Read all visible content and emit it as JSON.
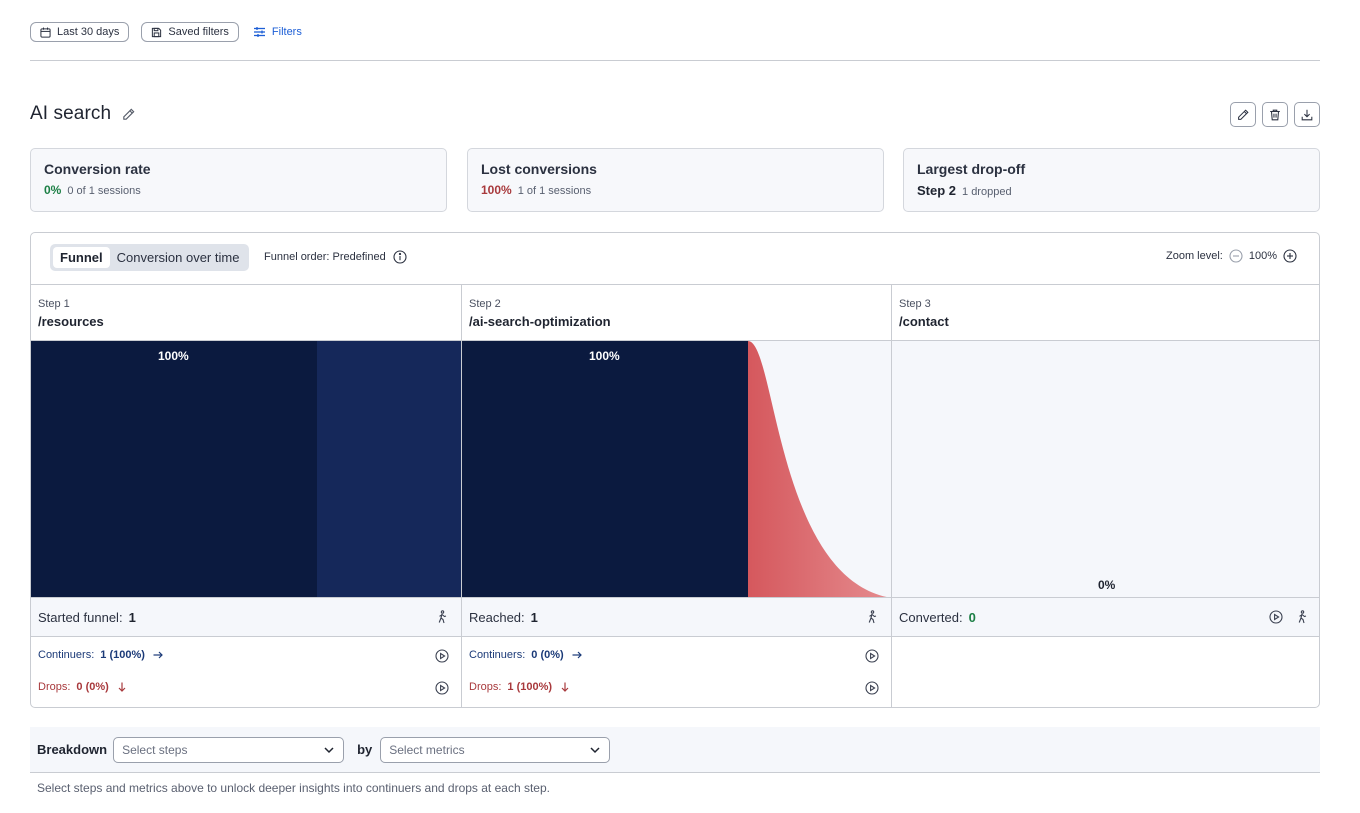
{
  "topbar": {
    "date_range_label": "Last 30 days",
    "saved_filters_label": "Saved filters",
    "filters_label": "Filters"
  },
  "title": "AI search",
  "stats": {
    "conversion_rate": {
      "title": "Conversion rate",
      "value": "0%",
      "detail": "0 of 1 sessions"
    },
    "lost_conversions": {
      "title": "Lost conversions",
      "value": "100%",
      "detail": "1 of 1 sessions"
    },
    "largest_dropoff": {
      "title": "Largest drop-off",
      "value": "Step 2",
      "detail": "1 dropped"
    }
  },
  "funnel": {
    "tabs": [
      "Funnel",
      "Conversion over time"
    ],
    "active_tab": "Funnel",
    "order_label": "Funnel order: Predefined",
    "zoom_label": "Zoom level:",
    "zoom_value": "100%",
    "steps": [
      {
        "step_label": "Step 1",
        "path": "/resources",
        "percent_label": "100%",
        "reached_fraction": 1.0,
        "continue_fraction": 1.0,
        "count_label": "Started funnel:",
        "count": "1",
        "continuers_label": "Continuers:",
        "continuers": "1 (100%)",
        "drops_label": "Drops:",
        "drops": "0 (0%)"
      },
      {
        "step_label": "Step 2",
        "path": "/ai-search-optimization",
        "percent_label": "100%",
        "reached_fraction": 1.0,
        "continue_fraction": 0.0,
        "count_label": "Reached:",
        "count": "1",
        "continuers_label": "Continuers:",
        "continuers": "0 (0%)",
        "drops_label": "Drops:",
        "drops": "1 (100%)"
      },
      {
        "step_label": "Step 3",
        "path": "/contact",
        "percent_label": "0%",
        "reached_fraction": 0.0,
        "count_label": "Converted:",
        "count": "0"
      }
    ],
    "colors": {
      "reached": "#0b1a3f",
      "continue": "#15285a",
      "drop": "#d5585d",
      "background": "#f5f7fb"
    }
  },
  "breakdown": {
    "label": "Breakdown",
    "steps_placeholder": "Select steps",
    "by_label": "by",
    "metrics_placeholder": "Select metrics",
    "hint": "Select steps and metrics above to unlock deeper insights into continuers and drops at each step."
  }
}
